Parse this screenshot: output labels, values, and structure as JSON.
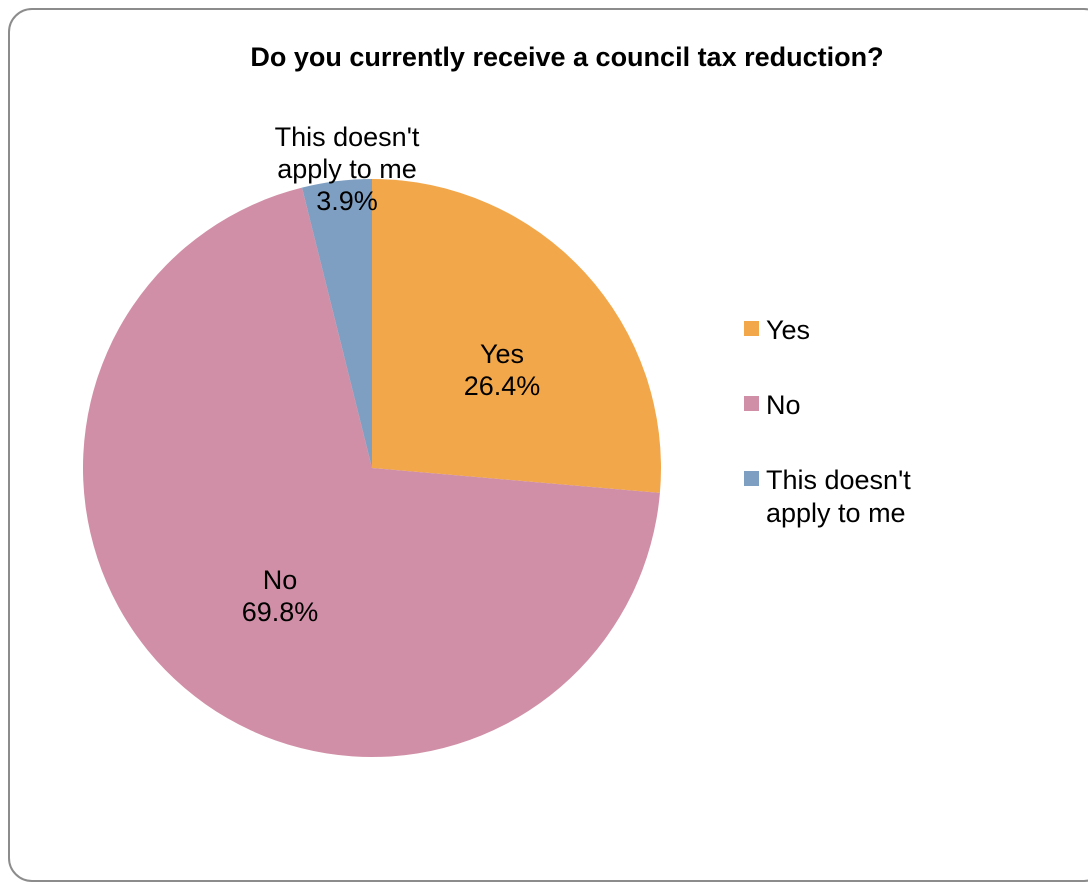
{
  "chart_data": {
    "type": "pie",
    "title": "Do you currently receive a council tax reduction?",
    "categories": [
      "Yes",
      "No",
      "This doesn't apply to me"
    ],
    "values": [
      26.4,
      69.8,
      3.9
    ],
    "value_labels": [
      "26.4%",
      "69.8%",
      "3.9%"
    ],
    "colors": [
      "#F2A74A",
      "#D08FA6",
      "#7F9FC2"
    ],
    "legend": {
      "placement": "right",
      "entries": [
        "Yes",
        "No",
        "This doesn't apply to me"
      ],
      "entry_lines": [
        [
          "Yes"
        ],
        [
          "No"
        ],
        [
          "This doesn't",
          "apply to me"
        ]
      ]
    },
    "data_label_lines": [
      [
        "Yes",
        "26.4%"
      ],
      [
        "No",
        "69.8%"
      ],
      [
        "This doesn't",
        "apply to me",
        "3.9%"
      ]
    ]
  }
}
